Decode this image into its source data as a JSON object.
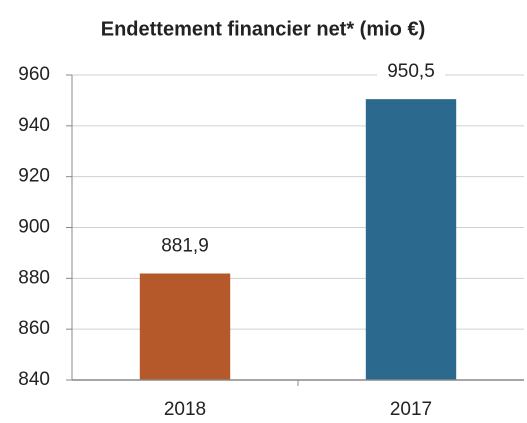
{
  "chart_data": {
    "type": "bar",
    "title": "Endettement financier net* (mio €)",
    "categories": [
      "2018",
      "2017"
    ],
    "values": [
      881.9,
      950.5
    ],
    "value_labels": [
      "881,9",
      "950,5"
    ],
    "colors": [
      "#b5582a",
      "#2b6a8e"
    ],
    "ylim": [
      840,
      960
    ],
    "yticks": [
      840,
      860,
      880,
      900,
      920,
      940,
      960
    ],
    "grid": true
  }
}
